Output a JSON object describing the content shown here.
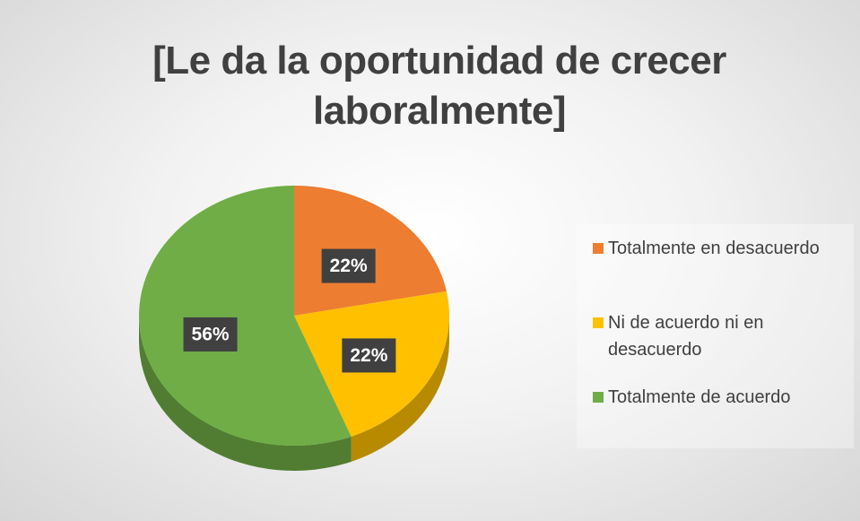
{
  "chart_data": {
    "type": "pie3d",
    "title": "[Le da la oportunidad de crecer laboralmente]",
    "categories": [
      "Totalmente en desacuerdo",
      "Ni de acuerdo ni en desacuerdo",
      "Totalmente de acuerdo"
    ],
    "values": [
      22,
      22,
      56
    ],
    "value_labels": [
      "22%",
      "22%",
      "56%"
    ],
    "colors": [
      "#ed7d31",
      "#ffc000",
      "#70ad47"
    ],
    "legend": "right"
  }
}
